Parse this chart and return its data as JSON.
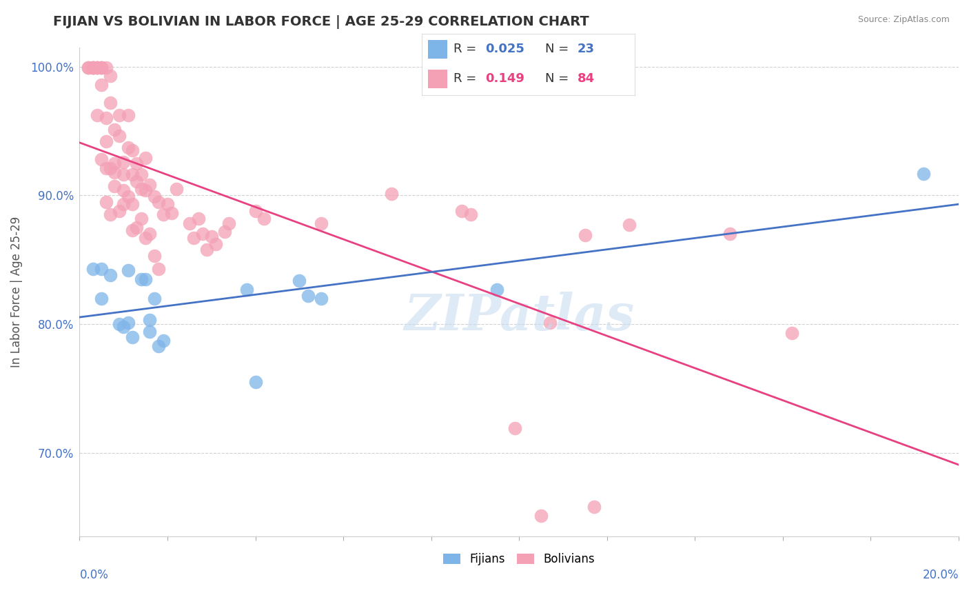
{
  "title": "FIJIAN VS BOLIVIAN IN LABOR FORCE | AGE 25-29 CORRELATION CHART",
  "source": "Source: ZipAtlas.com",
  "ylabel": "In Labor Force | Age 25-29",
  "legend_fijian_r": "0.025",
  "legend_fijian_n": "23",
  "legend_bolivian_r": "0.149",
  "legend_bolivian_n": "84",
  "fijian_color": "#7EB5E8",
  "bolivian_color": "#F4A0B5",
  "fijian_line_color": "#4472C4",
  "bolivian_line_color": "#E84080",
  "fijian_scatter_x": [
    0.3,
    0.5,
    0.5,
    0.7,
    0.9,
    1.0,
    1.1,
    1.1,
    1.2,
    1.4,
    1.5,
    1.6,
    1.6,
    1.7,
    1.8,
    1.9,
    3.8,
    4.0,
    5.0,
    5.2,
    5.5,
    9.5,
    19.2
  ],
  "fijian_scatter_y": [
    84.3,
    84.3,
    82.0,
    83.8,
    80.0,
    79.8,
    80.1,
    84.2,
    79.0,
    83.5,
    83.5,
    79.4,
    80.3,
    82.0,
    78.3,
    78.7,
    82.7,
    75.5,
    83.4,
    82.2,
    82.0,
    82.7,
    91.7
  ],
  "bolivian_scatter_x": [
    0.2,
    0.2,
    0.3,
    0.3,
    0.3,
    0.3,
    0.4,
    0.4,
    0.4,
    0.4,
    0.5,
    0.5,
    0.5,
    0.5,
    0.5,
    0.6,
    0.6,
    0.6,
    0.6,
    0.6,
    0.7,
    0.7,
    0.7,
    0.7,
    0.8,
    0.8,
    0.8,
    0.8,
    0.9,
    0.9,
    0.9,
    1.0,
    1.0,
    1.0,
    1.0,
    1.1,
    1.1,
    1.1,
    1.2,
    1.2,
    1.2,
    1.2,
    1.3,
    1.3,
    1.3,
    1.4,
    1.4,
    1.4,
    1.5,
    1.5,
    1.5,
    1.6,
    1.6,
    1.7,
    1.7,
    1.8,
    1.8,
    1.9,
    2.0,
    2.1,
    2.2,
    2.5,
    2.6,
    2.7,
    2.8,
    2.9,
    3.0,
    3.1,
    3.3,
    3.4,
    4.0,
    4.2,
    5.5,
    7.1,
    8.7,
    8.9,
    9.9,
    10.5,
    10.7,
    11.5,
    11.7,
    12.5,
    14.8,
    16.2
  ],
  "bolivian_scatter_y": [
    99.9,
    99.9,
    99.9,
    99.9,
    99.9,
    99.9,
    99.9,
    99.9,
    99.9,
    96.2,
    99.9,
    99.9,
    99.9,
    98.6,
    92.8,
    99.9,
    96.0,
    94.2,
    92.1,
    89.5,
    99.3,
    97.2,
    92.1,
    88.5,
    95.1,
    92.5,
    91.8,
    90.7,
    96.2,
    94.6,
    88.8,
    92.6,
    91.6,
    90.4,
    89.3,
    96.2,
    93.7,
    89.9,
    93.5,
    91.6,
    89.3,
    87.3,
    92.5,
    91.1,
    87.5,
    91.6,
    90.5,
    88.2,
    92.9,
    90.4,
    86.7,
    90.8,
    87.0,
    89.9,
    85.3,
    89.5,
    84.3,
    88.5,
    89.3,
    88.6,
    90.5,
    87.8,
    86.7,
    88.2,
    87.0,
    85.8,
    86.8,
    86.2,
    87.2,
    87.8,
    88.8,
    88.2,
    87.8,
    90.1,
    88.8,
    88.5,
    71.9,
    65.1,
    80.1,
    86.9,
    65.8,
    87.7,
    87.0,
    79.3
  ],
  "xlim": [
    0.0,
    20.0
  ],
  "ylim": [
    63.5,
    101.5
  ],
  "yticks": [
    70.0,
    80.0,
    90.0,
    100.0
  ],
  "ytick_labels": [
    "70.0%",
    "80.0%",
    "90.0%",
    "100.0%"
  ],
  "xtick_left_label": "0.0%",
  "xtick_right_label": "20.0%",
  "watermark": "ZIPatlas",
  "background_color": "#FFFFFF",
  "title_color": "#333333",
  "source_color": "#888888",
  "tick_color": "#4472C4",
  "grid_color": "#CCCCCC",
  "watermark_color": "#C8DCF0"
}
